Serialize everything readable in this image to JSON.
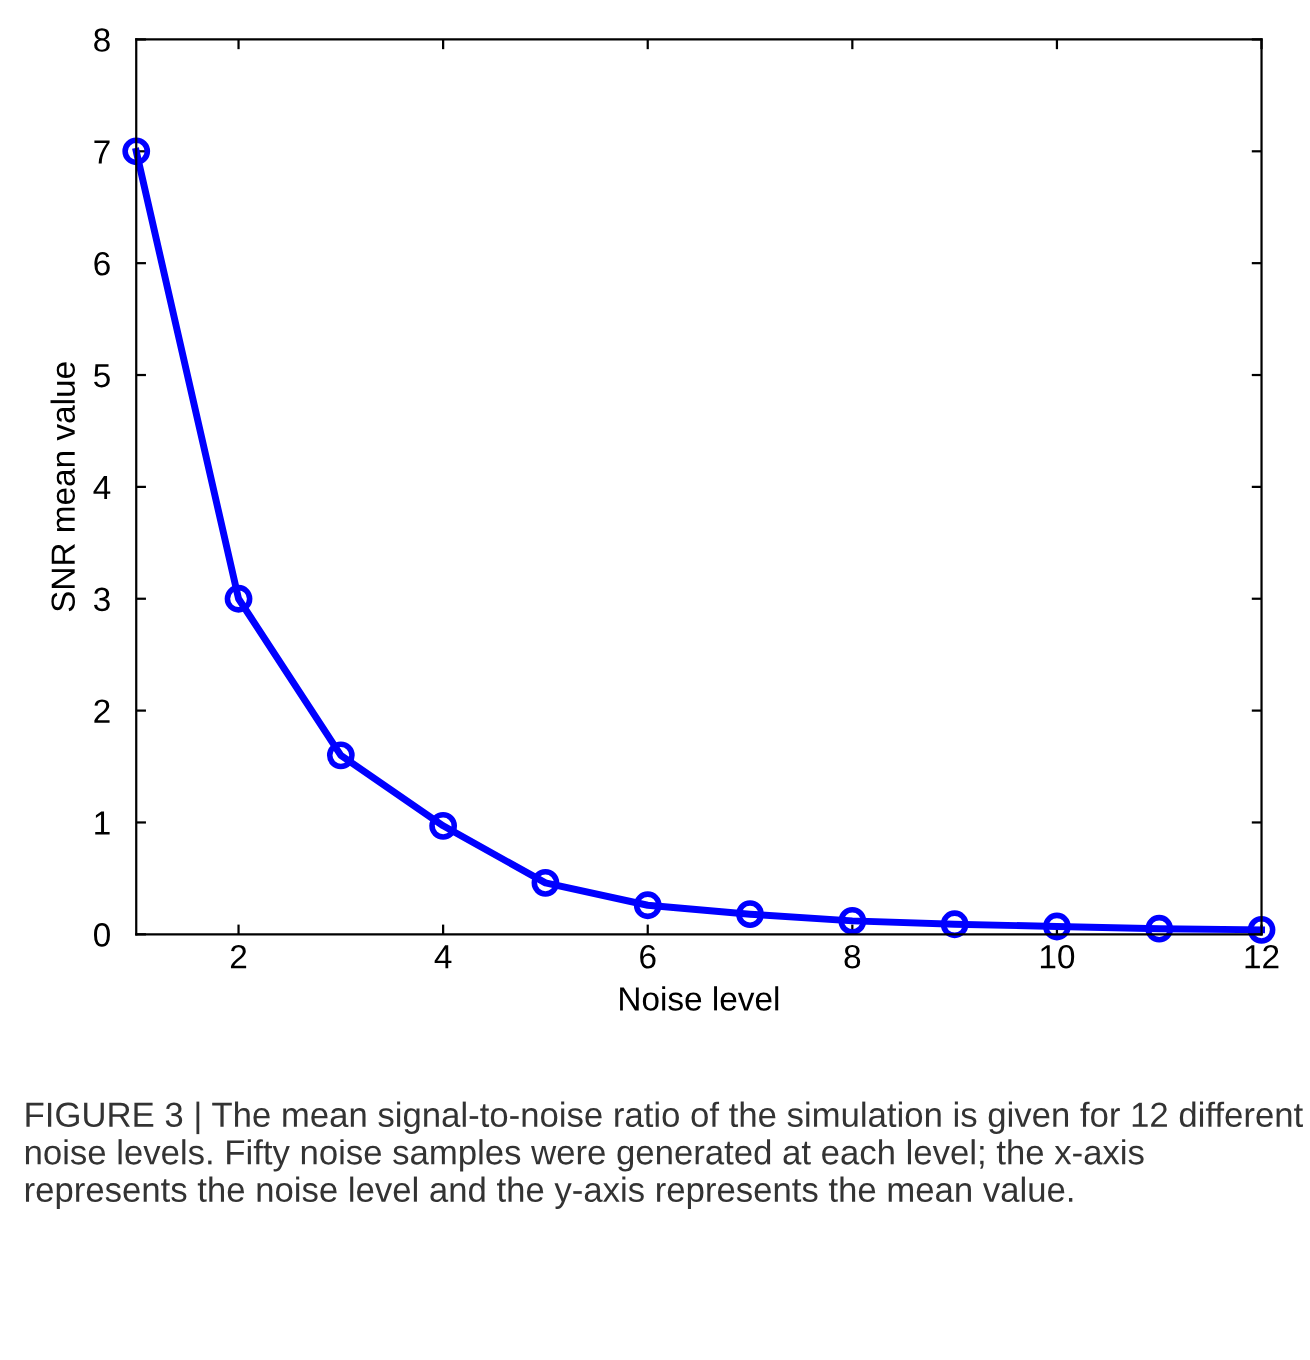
{
  "chart_data": {
    "type": "line",
    "xlabel": "Noise level",
    "ylabel": "SNR mean value",
    "x": [
      1,
      2,
      3,
      4,
      5,
      6,
      7,
      8,
      9,
      10,
      11,
      12
    ],
    "series": [
      {
        "color": "#0000ff",
        "values": [
          7.0,
          3.0,
          1.6,
          0.97,
          0.46,
          0.26,
          0.18,
          0.12,
          0.09,
          0.07,
          0.05,
          0.04
        ]
      }
    ],
    "xlim": [
      1,
      12
    ],
    "xticks": [
      2,
      4,
      6,
      8,
      10,
      12
    ],
    "ylim": [
      0,
      8
    ],
    "yticks": [
      0,
      1,
      2,
      3,
      4,
      5,
      6,
      7,
      8
    ],
    "marker": "circle",
    "line_style": "solid",
    "grid": false,
    "legend": false,
    "annotations": [
      "FIGURE 3 | The mean signal-to-noise ratio of the simulation is given for 12 different noise levels. Fifty noise samples were generated at each level; the x-axis represents the noise level and the y-axis represents the mean value."
    ]
  }
}
